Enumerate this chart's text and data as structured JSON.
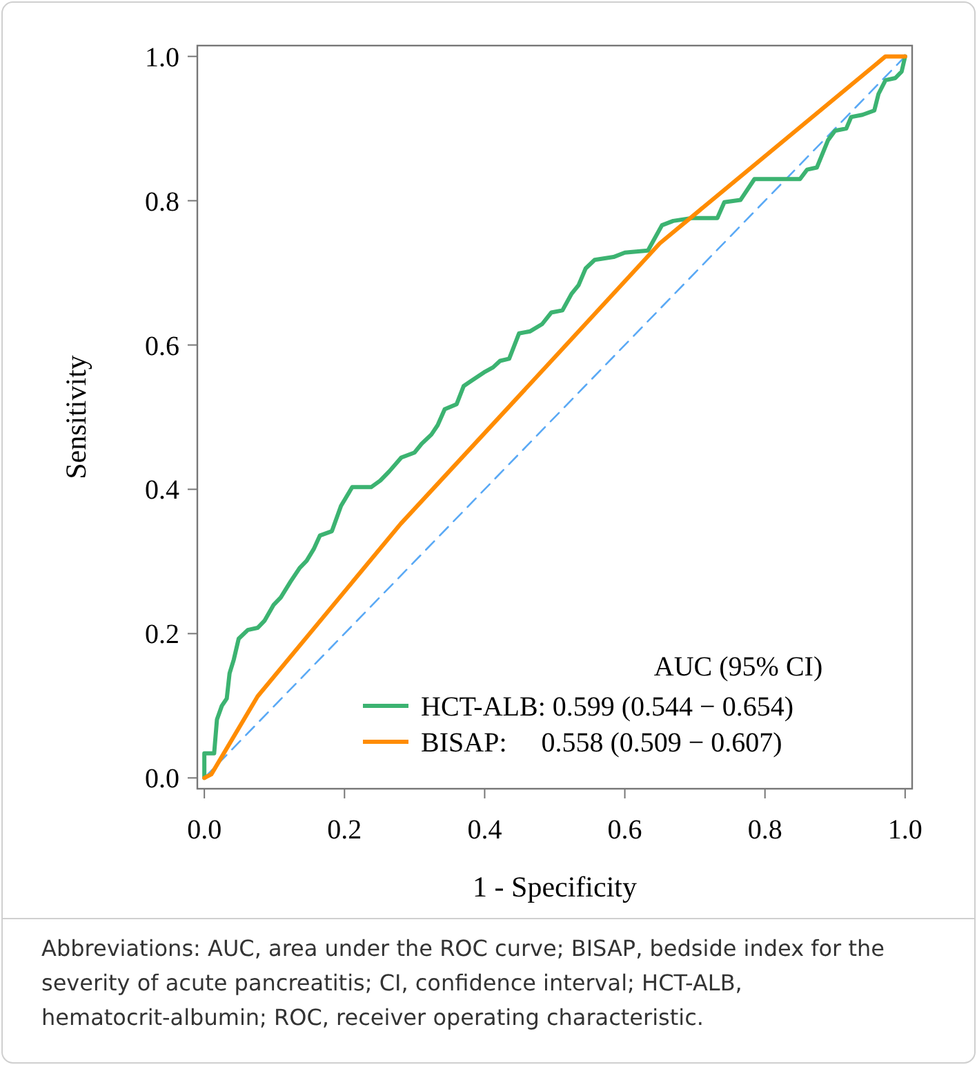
{
  "chart_data": {
    "type": "line",
    "xlabel": "1 - Specificity",
    "ylabel": "Sensitivity",
    "legend_title": "AUC (95% CI)",
    "legend": "bottom right",
    "grid": false,
    "marker": "none",
    "xlim": [
      -0.01,
      1.01
    ],
    "ylim": [
      -0.015,
      1.015
    ],
    "xticks": [
      {
        "value": 0,
        "label": "0.0"
      },
      {
        "value": 0.2,
        "label": "0.2"
      },
      {
        "value": 0.4,
        "label": "0.4"
      },
      {
        "value": 0.6,
        "label": "0.6"
      },
      {
        "value": 0.8,
        "label": "0.8"
      },
      {
        "value": 1,
        "label": "1.0"
      }
    ],
    "yticks": [
      {
        "value": 0,
        "label": "0.0"
      },
      {
        "value": 0.2,
        "label": "0.2"
      },
      {
        "value": 0.4,
        "label": "0.4"
      },
      {
        "value": 0.6,
        "label": "0.6"
      },
      {
        "value": 0.8,
        "label": "0.8"
      },
      {
        "value": 1,
        "label": "1.0"
      }
    ],
    "series": [
      {
        "name": "HCT-ALB: 0.599 (0.544 − 0.654)",
        "color": "#3cb371",
        "line_style": "solid",
        "x": [
          0,
          0,
          0.014,
          0.018,
          0.025,
          0.032,
          0.036,
          0.042,
          0.049,
          0.062,
          0.076,
          0.086,
          0.099,
          0.109,
          0.123,
          0.136,
          0.146,
          0.156,
          0.165,
          0.182,
          0.195,
          0.211,
          0.238,
          0.251,
          0.264,
          0.281,
          0.3,
          0.31,
          0.324,
          0.333,
          0.343,
          0.36,
          0.37,
          0.379,
          0.399,
          0.412,
          0.422,
          0.435,
          0.449,
          0.465,
          0.482,
          0.495,
          0.511,
          0.524,
          0.534,
          0.544,
          0.557,
          0.584,
          0.6,
          0.633,
          0.653,
          0.669,
          0.696,
          0.732,
          0.742,
          0.765,
          0.785,
          0.85,
          0.86,
          0.874,
          0.89,
          0.9,
          0.916,
          0.923,
          0.939,
          0.956,
          0.962,
          0.972,
          0.986,
          0.995,
          1
        ],
        "values": [
          0,
          0.034,
          0.034,
          0.081,
          0.1,
          0.11,
          0.145,
          0.164,
          0.193,
          0.205,
          0.208,
          0.218,
          0.24,
          0.25,
          0.272,
          0.291,
          0.301,
          0.317,
          0.336,
          0.342,
          0.377,
          0.403,
          0.403,
          0.412,
          0.425,
          0.444,
          0.451,
          0.463,
          0.476,
          0.489,
          0.511,
          0.518,
          0.543,
          0.549,
          0.562,
          0.569,
          0.578,
          0.581,
          0.616,
          0.619,
          0.629,
          0.645,
          0.648,
          0.671,
          0.683,
          0.706,
          0.718,
          0.722,
          0.728,
          0.731,
          0.766,
          0.772,
          0.776,
          0.776,
          0.798,
          0.801,
          0.83,
          0.83,
          0.843,
          0.846,
          0.884,
          0.897,
          0.9,
          0.916,
          0.919,
          0.925,
          0.948,
          0.967,
          0.97,
          0.979,
          1
        ]
      },
      {
        "name": "BISAP:     0.558 (0.509 − 0.607)",
        "color": "#ff8c00",
        "line_style": "solid",
        "x": [
          0,
          0.01,
          0.076,
          0.28,
          0.5,
          0.65,
          0.972,
          1
        ],
        "values": [
          0,
          0.005,
          0.113,
          0.352,
          0.583,
          0.741,
          1,
          1
        ]
      },
      {
        "color": "#5aa9f5",
        "line_style": "dashed",
        "x": [
          0,
          1
        ],
        "values": [
          0,
          1
        ]
      }
    ],
    "annotations": [
      "Abbreviations: AUC, area under the ROC curve; BISAP, bedside index for the severity of acute pancreatitis; CI, confidence interval; HCT-ALB, hematocrit-albumin; ROC, receiver operating characteristic."
    ]
  }
}
